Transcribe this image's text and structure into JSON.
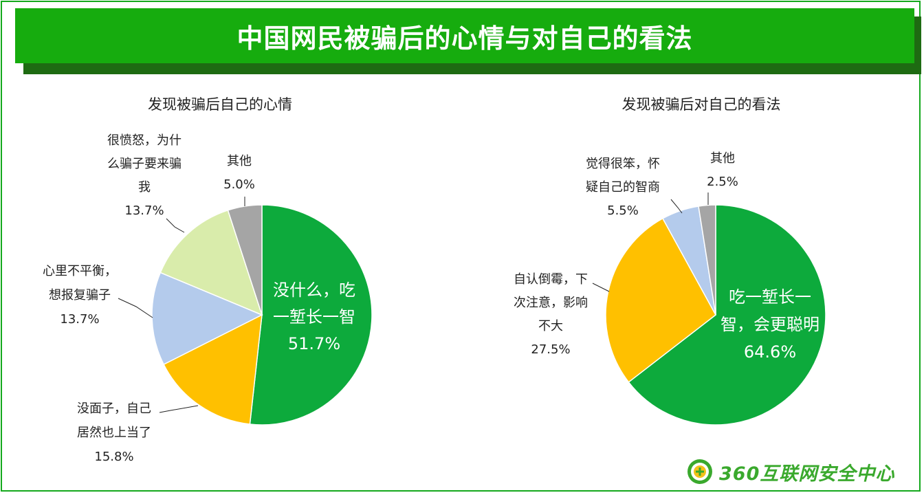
{
  "title": "中国网民被骗后的心情与对自己的看法",
  "logo_text": "360互联网安全中心",
  "chart_data": [
    {
      "type": "pie",
      "title": "发现被骗后自己的心情",
      "slices": [
        {
          "lines": [
            "没什么，吃",
            "一堑长一智"
          ],
          "value": 51.7,
          "pct": "51.7%",
          "color": "#0daa3c"
        },
        {
          "lines": [
            "没面子，自己",
            "居然也上当了"
          ],
          "value": 15.8,
          "pct": "15.8%",
          "color": "#ffc000"
        },
        {
          "lines": [
            "心里不平衡，",
            "想报复骗子"
          ],
          "value": 13.7,
          "pct": "13.7%",
          "color": "#b4cbec"
        },
        {
          "lines": [
            "很愤怒，为什",
            "么骗子要来骗",
            "我"
          ],
          "value": 13.7,
          "pct": "13.7%",
          "color": "#d9ecab"
        },
        {
          "lines": [
            "其他"
          ],
          "value": 5.0,
          "pct": "5.0%",
          "color": "#a5a5a5"
        }
      ]
    },
    {
      "type": "pie",
      "title": "发现被骗后对自己的看法",
      "slices": [
        {
          "lines": [
            "吃一堑长一",
            "智，会更聪明"
          ],
          "value": 64.6,
          "pct": "64.6%",
          "color": "#0daa3c"
        },
        {
          "lines": [
            "自认倒霉，下",
            "次注意，影响",
            "不大"
          ],
          "value": 27.5,
          "pct": "27.5%",
          "color": "#ffc000"
        },
        {
          "lines": [
            "觉得很笨，怀",
            "疑自己的智商"
          ],
          "value": 5.5,
          "pct": "5.5%",
          "color": "#b4cbec"
        },
        {
          "lines": [
            "其他"
          ],
          "value": 2.5,
          "pct": "2.5%",
          "color": "#a5a5a5"
        }
      ]
    }
  ]
}
